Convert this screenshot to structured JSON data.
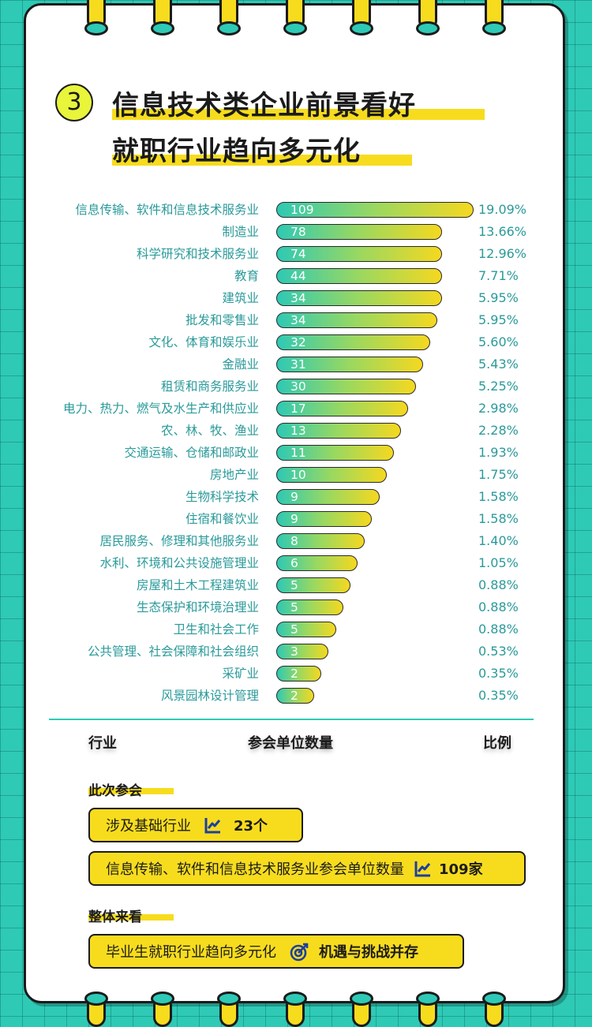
{
  "title": {
    "number": "3",
    "line1": "信息技术类企业前景看好",
    "line2": "就职行业趋向多元化"
  },
  "chart_data": {
    "type": "bar",
    "orientation": "horizontal",
    "categories": [
      "信息传输、软件和信息技术服务业",
      "制造业",
      "科学研究和技术服务业",
      "教育",
      "建筑业",
      "批发和零售业",
      "文化、体育和娱乐业",
      "金融业",
      "租赁和商务服务业",
      "电力、热力、燃气及水生产和供应业",
      "农、林、牧、渔业",
      "交通运输、仓储和邮政业",
      "房地产业",
      "生物科学技术",
      "住宿和餐饮业",
      "居民服务、修理和其他服务业",
      "水利、环境和公共设施管理业",
      "房屋和土木工程建筑业",
      "生态保护和环境治理业",
      "卫生和社会工作",
      "公共管理、社会保障和社会组织",
      "采矿业",
      "风景园林设计管理"
    ],
    "values": [
      109,
      78,
      74,
      44,
      34,
      34,
      32,
      31,
      30,
      17,
      13,
      11,
      10,
      9,
      9,
      8,
      6,
      5,
      5,
      5,
      3,
      2,
      2
    ],
    "percent_labels": [
      "19.09%",
      "13.66%",
      "12.96%",
      "7.71%",
      "5.95%",
      "5.95%",
      "5.60%",
      "5.43%",
      "5.25%",
      "2.98%",
      "2.28%",
      "1.93%",
      "1.75%",
      "1.58%",
      "1.58%",
      "1.40%",
      "1.05%",
      "0.88%",
      "0.88%",
      "0.88%",
      "0.53%",
      "0.35%",
      "0.35%"
    ],
    "xlabel": "参会单位数量",
    "category_axis_label": "行业",
    "percent_axis_label": "比例"
  },
  "summary": {
    "section1_title": "此次参会",
    "pill1_text": "涉及基础行业",
    "pill1_value": "23个",
    "pill2_text": "信息传输、软件和信息技术服务业参会单位数量",
    "pill2_value": "109家",
    "section2_title": "整体来看",
    "pill3_text": "毕业生就职行业趋向多元化",
    "pill3_value": "机遇与挑战并存"
  },
  "colors": {
    "accent_yellow": "#f7dc1e",
    "teal": "#2ecab6",
    "label_teal": "#2b9a9a"
  },
  "icons": [
    "chart-line-icon",
    "target-icon"
  ]
}
